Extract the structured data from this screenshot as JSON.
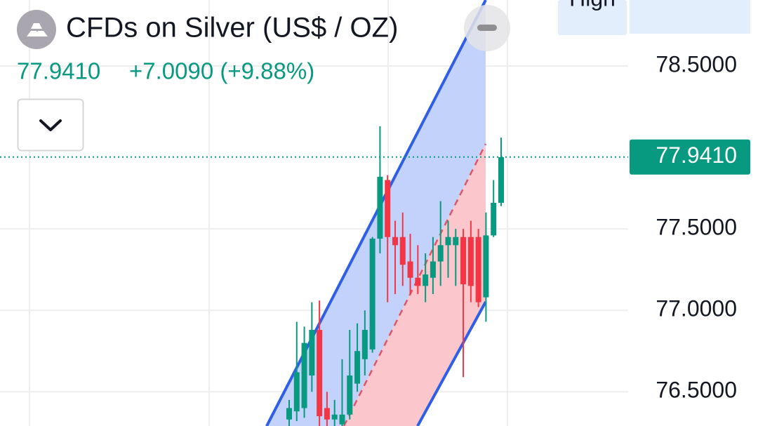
{
  "chart_data": {
    "type": "candlestick",
    "title": "CFDs on Silver (US$ / OZ)",
    "last": {
      "value": 77.941,
      "label": "77.9410"
    },
    "change": "+7.0090 (+9.88%)",
    "high_label": "High",
    "high": [
      76.45,
      76.93,
      76.9,
      77.05,
      77.06,
      76.5,
      76.45,
      76.7,
      76.88,
      76.92,
      77.0,
      77.45,
      78.13,
      77.83,
      77.55,
      77.6,
      77.47,
      77.4,
      77.35,
      77.45,
      77.67,
      77.55,
      77.5,
      77.5,
      77.55,
      77.5,
      77.6,
      77.8,
      78.06
    ],
    "ylim": [
      76.29,
      78.905
    ],
    "yticks": [
      {
        "value": 78.5,
        "label": "78.5000"
      },
      {
        "value": 77.5,
        "label": "77.5000"
      },
      {
        "value": 77.0,
        "label": "77.0000"
      },
      {
        "value": 76.5,
        "label": "76.5000"
      }
    ],
    "grid": true,
    "up_color": "#089981",
    "down_color": "#f23645",
    "open": [
      76.33,
      76.38,
      76.4,
      76.6,
      76.88,
      76.4,
      76.33,
      76.3,
      76.36,
      76.55,
      76.7,
      76.76,
      77.44,
      77.8,
      77.45,
      77.45,
      77.3,
      77.2,
      77.15,
      77.2,
      77.3,
      77.4,
      77.4,
      77.45,
      77.45,
      77.45,
      77.08,
      77.46,
      77.66
    ],
    "low": [
      76.29,
      76.32,
      76.34,
      76.5,
      76.29,
      76.29,
      76.29,
      76.29,
      76.33,
      76.5,
      76.6,
      76.74,
      77.35,
      77.05,
      77.1,
      77.15,
      77.1,
      77.1,
      77.05,
      77.1,
      77.15,
      77.2,
      77.15,
      76.59,
      77.05,
      77.02,
      76.93,
      77.45,
      77.64
    ],
    "close": [
      76.4,
      76.62,
      76.8,
      76.88,
      76.35,
      76.33,
      76.36,
      76.36,
      76.6,
      76.75,
      76.88,
      77.44,
      77.82,
      77.45,
      77.4,
      77.28,
      77.2,
      77.15,
      77.22,
      77.3,
      77.4,
      77.45,
      77.45,
      77.16,
      77.15,
      77.05,
      77.46,
      77.66,
      77.94
    ]
  }
}
